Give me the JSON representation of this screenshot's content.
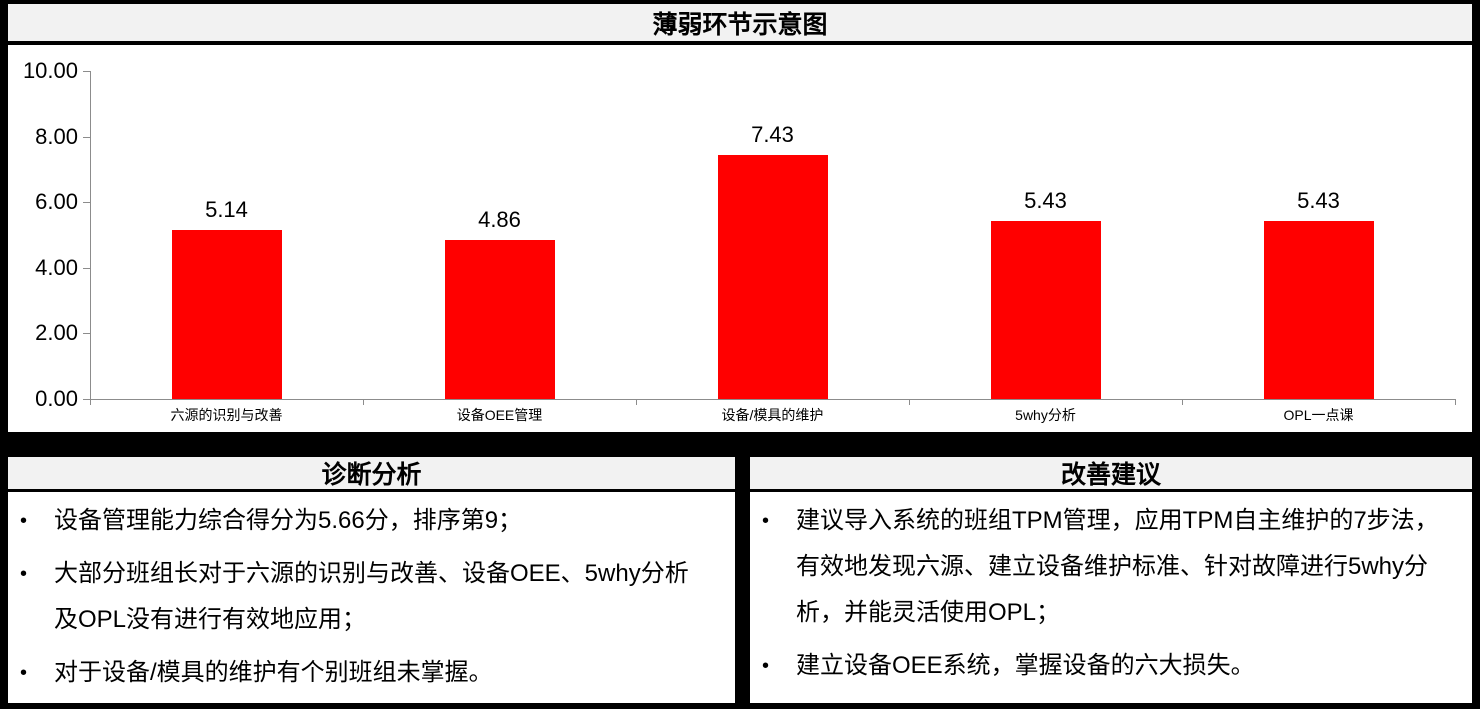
{
  "title": "薄弱环节示意图",
  "colors": {
    "bar": "#FF0000",
    "header_bg": "#F2F2F2",
    "frame": "#000000",
    "axis": "#8C8C8C",
    "text": "#000000"
  },
  "chart_data": {
    "type": "bar",
    "title": "薄弱环节示意图",
    "categories": [
      "六源的识别与改善",
      "设备OEE管理",
      "设备/模具的维护",
      "5why分析",
      "OPL一点课"
    ],
    "values": [
      5.14,
      4.86,
      7.43,
      5.43,
      5.43
    ],
    "value_labels": [
      "5.14",
      "4.86",
      "7.43",
      "5.43",
      "5.43"
    ],
    "xlabel": "",
    "ylabel": "",
    "ylim": [
      0,
      10
    ],
    "ytick_interval": 2,
    "ytick_labels": [
      "10.00",
      "8.00",
      "6.00",
      "4.00",
      "2.00",
      "0.00"
    ],
    "grid": false,
    "legend": "none",
    "bar_color": "#FF0000"
  },
  "diagnosis_panel": {
    "title": "诊断分析",
    "bullet_char": "•",
    "bullets": [
      "设备管理能力综合得分为5.66分，排序第9；",
      "大部分班组长对于六源的识别与改善、设备OEE、5why分析\n及OPL没有进行有效地应用；",
      "对于设备/模具的维护有个别班组未掌握。"
    ]
  },
  "suggestion_panel": {
    "title": "改善建议",
    "bullet_char": "•",
    "bullets": [
      "建议导入系统的班组TPM管理，应用TPM自主维护的7步法，\n有效地发现六源、建立设备维护标准、针对故障进行5why分\n析，并能灵活使用OPL；",
      "建立设备OEE系统，掌握设备的六大损失。"
    ]
  }
}
